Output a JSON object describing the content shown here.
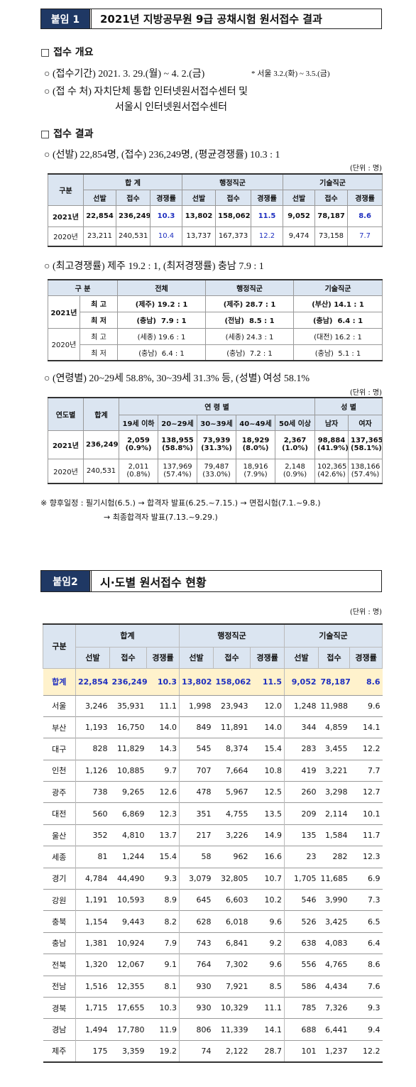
{
  "attachment1": {
    "badge": "붙임 1",
    "title": "2021년 지방공무원 9급 공채시험 원서접수 결과",
    "overview": {
      "heading": "□ 접수 개요",
      "period": "○ (접수기간) 2021. 3. 29.(월) ~ 4. 2.(금)",
      "period_note": "* 서울 3.2.(화) ~ 3.5.(금)",
      "place_line1": "○ (접 수 처) 자치단체 통합 인터넷원서접수센터 및",
      "place_line2": "서울시 인터넷원서접수센터"
    },
    "results": {
      "heading": "□ 접수 결과",
      "summary": "○ (선발) 22,854명, (접수) 236,249명, (평균경쟁률) 10.3 : 1",
      "unit": "(단위 : 명)",
      "table1": {
        "header_top": [
          "구분",
          "합 계",
          "행정직군",
          "기술직군"
        ],
        "header_sub": [
          "선발",
          "접수",
          "경쟁률",
          "선발",
          "접수",
          "경쟁률",
          "선발",
          "접수",
          "경쟁률"
        ],
        "rows": [
          [
            "2021년",
            "22,854",
            "236,249",
            "10.3",
            "13,802",
            "158,062",
            "11.5",
            "9,052",
            "78,187",
            "8.6"
          ],
          [
            "2020년",
            "23,211",
            "240,531",
            "10.4",
            "13,737",
            "167,373",
            "12.2",
            "9,474",
            "73,158",
            "7.7"
          ]
        ]
      },
      "competition_summary": "○ (최고경쟁률) 제주 19.2 : 1, (최저경쟁률) 충남 7.9 : 1",
      "table2": {
        "header": [
          "구 분",
          "전체",
          "행정직군",
          "기술직군"
        ],
        "groups": [
          {
            "year": "2021년",
            "rows": [
              [
                "최 고",
                "(제주) 19.2 : 1",
                "(제주) 28.7 : 1",
                "(부산) 14.1 : 1"
              ],
              [
                "최 저",
                "(충남)  7.9 : 1",
                "(전남)  8.5 : 1",
                "(충남)  6.4 : 1"
              ]
            ]
          },
          {
            "year": "2020년",
            "rows": [
              [
                "최 고",
                "(세종) 19.6 : 1",
                "(세종) 24.3 : 1",
                "(대전) 16.2 : 1"
              ],
              [
                "최 저",
                "(충남)  6.4 : 1",
                "(충남)  7.2 : 1",
                "(충남)  5.1 : 1"
              ]
            ]
          }
        ]
      },
      "age_summary": "○ (연령별) 20~29세 58.8%, 30~39세 31.3% 등, (성별) 여성 58.1%",
      "unit2": "(단위 : 명)",
      "table3": {
        "header_top": [
          "연도별",
          "합계",
          "연 령 별",
          "성 별"
        ],
        "header_sub": [
          "19세 이하",
          "20~29세",
          "30~39세",
          "40~49세",
          "50세 이상",
          "남자",
          "여자"
        ],
        "rows": [
          {
            "year": "2021년",
            "total": "236,249",
            "cells": [
              [
                "2,059",
                "(0.9%)"
              ],
              [
                "138,955",
                "(58.8%)"
              ],
              [
                "73,939",
                "(31.3%)"
              ],
              [
                "18,929",
                "(8.0%)"
              ],
              [
                "2,367",
                "(1.0%)"
              ],
              [
                "98,884",
                "(41.9%)"
              ],
              [
                "137,365",
                "(58.1%)"
              ]
            ]
          },
          {
            "year": "2020년",
            "total": "240,531",
            "cells": [
              [
                "2,011",
                "(0.8%)"
              ],
              [
                "137,969",
                "(57.4%)"
              ],
              [
                "79,487",
                "(33.0%)"
              ],
              [
                "18,916",
                "(7.9%)"
              ],
              [
                "2,148",
                "(0.9%)"
              ],
              [
                "102,365",
                "(42.6%)"
              ],
              [
                "138,166",
                "(57.4%)"
              ]
            ]
          }
        ]
      },
      "note_line1": "※ 향후일정 : 필기시험(6.5.) → 합격자 발표(6.25.~7.15.) → 면접시험(7.1.~9.8.)",
      "note_line2": "→ 최종합격자 발표(7.13.~9.29.)"
    }
  },
  "attachment2": {
    "badge": "붙임2",
    "title": "시·도별 원서접수 현황",
    "unit": "(단위 : 명)",
    "table": {
      "header_top": [
        "구분",
        "합계",
        "행정직군",
        "기술직군"
      ],
      "header_sub": [
        "선발",
        "접수",
        "경쟁률",
        "선발",
        "접수",
        "경쟁률",
        "선발",
        "접수",
        "경쟁률"
      ],
      "rows": [
        [
          "합계",
          "22,854",
          "236,249",
          "10.3",
          "13,802",
          "158,062",
          "11.5",
          "9,052",
          "78,187",
          "8.6"
        ],
        [
          "서울",
          "3,246",
          "35,931",
          "11.1",
          "1,998",
          "23,943",
          "12.0",
          "1,248",
          "11,988",
          "9.6"
        ],
        [
          "부산",
          "1,193",
          "16,750",
          "14.0",
          "849",
          "11,891",
          "14.0",
          "344",
          "4,859",
          "14.1"
        ],
        [
          "대구",
          "828",
          "11,829",
          "14.3",
          "545",
          "8,374",
          "15.4",
          "283",
          "3,455",
          "12.2"
        ],
        [
          "인천",
          "1,126",
          "10,885",
          "9.7",
          "707",
          "7,664",
          "10.8",
          "419",
          "3,221",
          "7.7"
        ],
        [
          "광주",
          "738",
          "9,265",
          "12.6",
          "478",
          "5,967",
          "12.5",
          "260",
          "3,298",
          "12.7"
        ],
        [
          "대전",
          "560",
          "6,869",
          "12.3",
          "351",
          "4,755",
          "13.5",
          "209",
          "2,114",
          "10.1"
        ],
        [
          "울산",
          "352",
          "4,810",
          "13.7",
          "217",
          "3,226",
          "14.9",
          "135",
          "1,584",
          "11.7"
        ],
        [
          "세종",
          "81",
          "1,244",
          "15.4",
          "58",
          "962",
          "16.6",
          "23",
          "282",
          "12.3"
        ],
        [
          "경기",
          "4,784",
          "44,490",
          "9.3",
          "3,079",
          "32,805",
          "10.7",
          "1,705",
          "11,685",
          "6.9"
        ],
        [
          "강원",
          "1,191",
          "10,593",
          "8.9",
          "645",
          "6,603",
          "10.2",
          "546",
          "3,990",
          "7.3"
        ],
        [
          "충북",
          "1,154",
          "9,443",
          "8.2",
          "628",
          "6,018",
          "9.6",
          "526",
          "3,425",
          "6.5"
        ],
        [
          "충남",
          "1,381",
          "10,924",
          "7.9",
          "743",
          "6,841",
          "9.2",
          "638",
          "4,083",
          "6.4"
        ],
        [
          "전북",
          "1,320",
          "12,067",
          "9.1",
          "764",
          "7,302",
          "9.6",
          "556",
          "4,765",
          "8.6"
        ],
        [
          "전남",
          "1,516",
          "12,355",
          "8.1",
          "930",
          "7,921",
          "8.5",
          "586",
          "4,434",
          "7.6"
        ],
        [
          "경북",
          "1,715",
          "17,655",
          "10.3",
          "930",
          "10,329",
          "11.1",
          "785",
          "7,326",
          "9.3"
        ],
        [
          "경남",
          "1,494",
          "17,780",
          "11.9",
          "806",
          "11,339",
          "14.1",
          "688",
          "6,441",
          "9.4"
        ],
        [
          "제주",
          "175",
          "3,359",
          "19.2",
          "74",
          "2,122",
          "28.7",
          "101",
          "1,237",
          "12.2"
        ]
      ]
    }
  }
}
